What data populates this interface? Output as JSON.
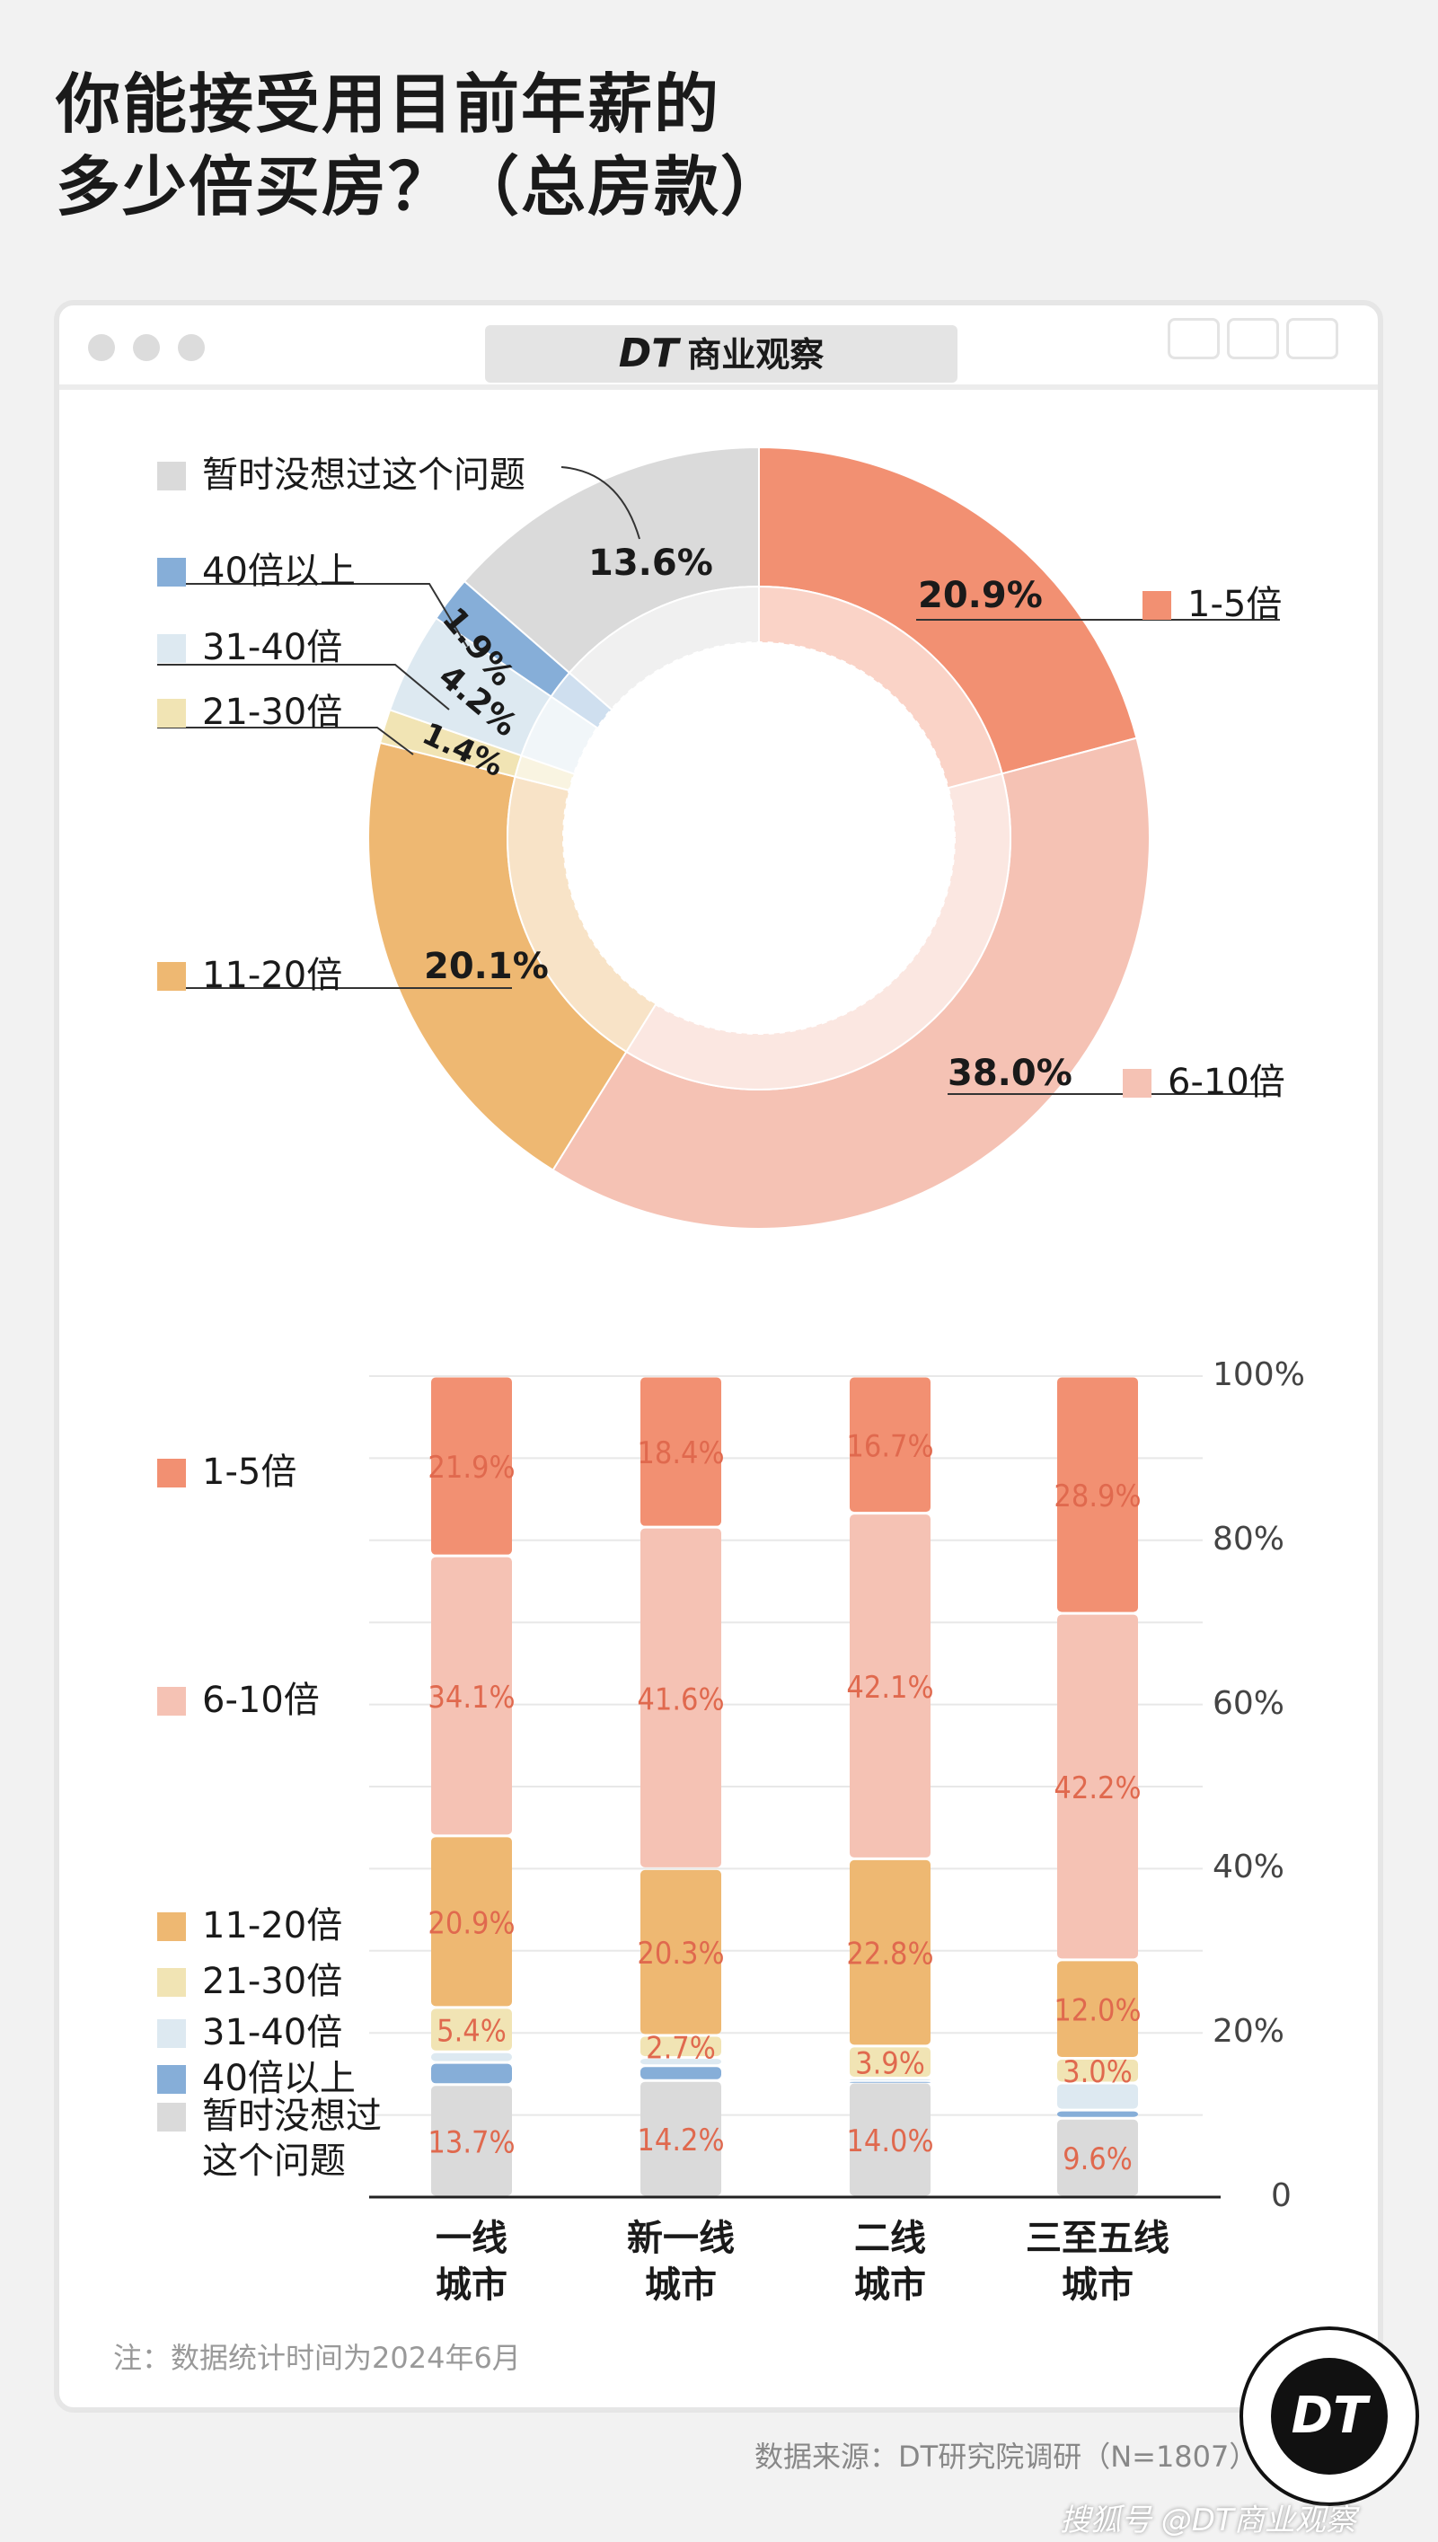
{
  "title": {
    "line1": "你能接受用目前年薪的",
    "line2": "多少倍买房？（总房款）"
  },
  "window": {
    "brand_mark": "DT",
    "brand_name": "商业观察"
  },
  "colors": {
    "1-5倍": "#f29072",
    "6-10倍": "#f5c2b4",
    "11-20倍": "#eeb872",
    "21-30倍": "#f1e4b4",
    "31-40倍": "#dde9f1",
    "40倍以上": "#86aed8",
    "暂时没想过这个问题": "#dadada",
    "bar_label": "#e0694e"
  },
  "chart_data": [
    {
      "type": "pie",
      "donut": true,
      "slices": [
        {
          "label": "1-5倍",
          "value": 20.9,
          "display": "20.9%"
        },
        {
          "label": "6-10倍",
          "value": 38.0,
          "display": "38.0%"
        },
        {
          "label": "11-20倍",
          "value": 20.1,
          "display": "20.1%"
        },
        {
          "label": "21-30倍",
          "value": 1.4,
          "display": "1.4%"
        },
        {
          "label": "31-40倍",
          "value": 4.2,
          "display": "4.2%"
        },
        {
          "label": "40倍以上",
          "value": 1.9,
          "display": "1.9%"
        },
        {
          "label": "暂时没想过这个问题",
          "value": 13.6,
          "display": "13.6%"
        }
      ]
    },
    {
      "type": "bar",
      "stacked": true,
      "categories": [
        "一线城市",
        "新一线城市",
        "二线城市",
        "三至五线城市"
      ],
      "category_lines": [
        [
          "一线",
          "城市"
        ],
        [
          "新一线",
          "城市"
        ],
        [
          "二线",
          "城市"
        ],
        [
          "三至五线",
          "城市"
        ]
      ],
      "ylim": [
        0,
        100
      ],
      "yticks": [
        "0",
        "20%",
        "40%",
        "60%",
        "80%",
        "100%"
      ],
      "grid": true,
      "legend_position": "left",
      "legend": [
        "1-5倍",
        "6-10倍",
        "11-20倍",
        "21-30倍",
        "31-40倍",
        "40倍以上",
        "暂时没想过",
        "这个问题"
      ],
      "series": [
        {
          "name": "暂时没想过这个问题",
          "values": [
            13.7,
            14.2,
            14.0,
            9.6
          ],
          "labels": [
            "13.7%",
            "14.2%",
            "14.0%",
            "9.6%"
          ]
        },
        {
          "name": "40倍以上",
          "values": [
            2.7,
            1.8,
            0.2,
            1.0
          ],
          "labels": [
            "",
            "",
            "",
            ""
          ]
        },
        {
          "name": "31-40倍",
          "values": [
            1.3,
            1.0,
            0.3,
            3.3
          ],
          "labels": [
            "",
            "",
            "",
            ""
          ]
        },
        {
          "name": "21-30倍",
          "values": [
            5.4,
            2.7,
            3.9,
            3.0
          ],
          "labels": [
            "5.4%",
            "2.7%",
            "3.9%",
            "3.0%"
          ]
        },
        {
          "name": "11-20倍",
          "values": [
            20.9,
            20.3,
            22.8,
            12.0
          ],
          "labels": [
            "20.9%",
            "20.3%",
            "22.8%",
            "12.0%"
          ]
        },
        {
          "name": "6-10倍",
          "values": [
            34.1,
            41.6,
            42.1,
            42.2
          ],
          "labels": [
            "34.1%",
            "41.6%",
            "42.1%",
            "42.2%"
          ]
        },
        {
          "name": "1-5倍",
          "values": [
            21.9,
            18.4,
            16.7,
            28.9
          ],
          "labels": [
            "21.9%",
            "18.4%",
            "16.7%",
            "28.9%"
          ]
        }
      ]
    }
  ],
  "note": "注：数据统计时间为2024年6月",
  "source": "数据来源：DT研究院调研（N=1807）",
  "logo": "DT",
  "footer": "搜狐号 @DT商业观察"
}
